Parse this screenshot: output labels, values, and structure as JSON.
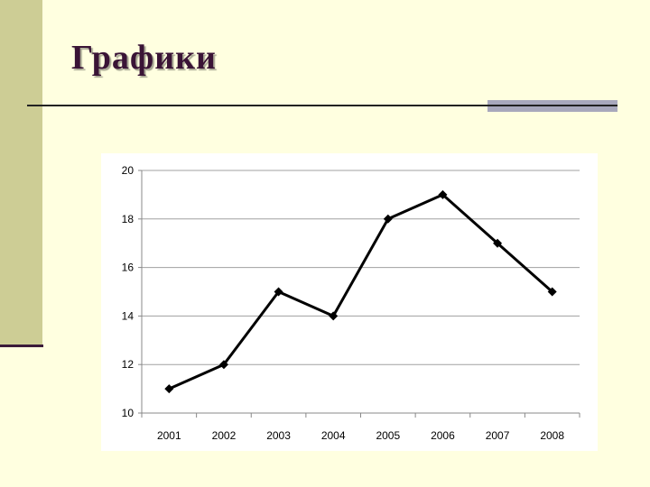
{
  "slide": {
    "title": "Графики"
  },
  "colors": {
    "background": "#ffffe0",
    "side_bar": "#cdcd95",
    "side_bar_underline": "#3b1b3a",
    "title": "#3a1436",
    "rule": "#222222",
    "rule_accent": "#a8a8bc",
    "series_line": "#000000",
    "gridline": "#a0a0a0"
  },
  "chart_data": {
    "type": "line",
    "title": "",
    "xlabel": "",
    "ylabel": "",
    "categories": [
      "2001",
      "2002",
      "2003",
      "2004",
      "2005",
      "2006",
      "2007",
      "2008"
    ],
    "series": [
      {
        "values": [
          11,
          12,
          15,
          14,
          18,
          19,
          17,
          15
        ],
        "marker": "diamond"
      }
    ],
    "ylim": [
      10,
      20
    ],
    "yticks": [
      10,
      12,
      14,
      16,
      18,
      20
    ],
    "ytick_labels": [
      "10",
      "12",
      "14",
      "16",
      "18",
      "20"
    ],
    "grid": "horizontal",
    "legend": "none"
  }
}
